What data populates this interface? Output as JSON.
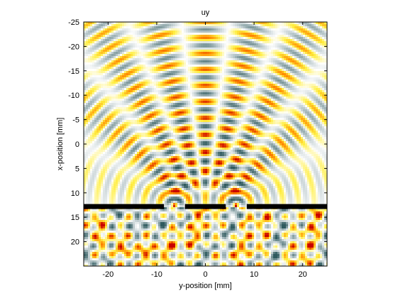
{
  "chart_data": {
    "type": "heatmap",
    "title": "uy",
    "xlabel": "y-position [mm]",
    "ylabel": "x-position [mm]",
    "xlim": [
      -25,
      25
    ],
    "ylim": [
      25,
      -25
    ],
    "y_axis_direction": "reversed",
    "xticks": [
      -20,
      -10,
      0,
      10,
      20
    ],
    "yticks": [
      -25,
      -20,
      -15,
      -10,
      -5,
      0,
      5,
      10,
      15,
      20
    ],
    "grid": false,
    "colormap": [
      "#2f5a5e",
      "#b9c8cb",
      "#ffffff",
      "#ffee40",
      "#ff8a00",
      "#c80000"
    ],
    "barrier": {
      "x": 12.8,
      "segments": [
        [
          -25,
          -8.5
        ],
        [
          -4.2,
          4.2
        ],
        [
          8.5,
          25
        ]
      ],
      "color": "#000000"
    },
    "slits": [
      {
        "center": -6.3,
        "width": 4.3
      },
      {
        "center": 6.3,
        "width": 4.3
      }
    ],
    "field_description": "wave pattern from two slits"
  }
}
